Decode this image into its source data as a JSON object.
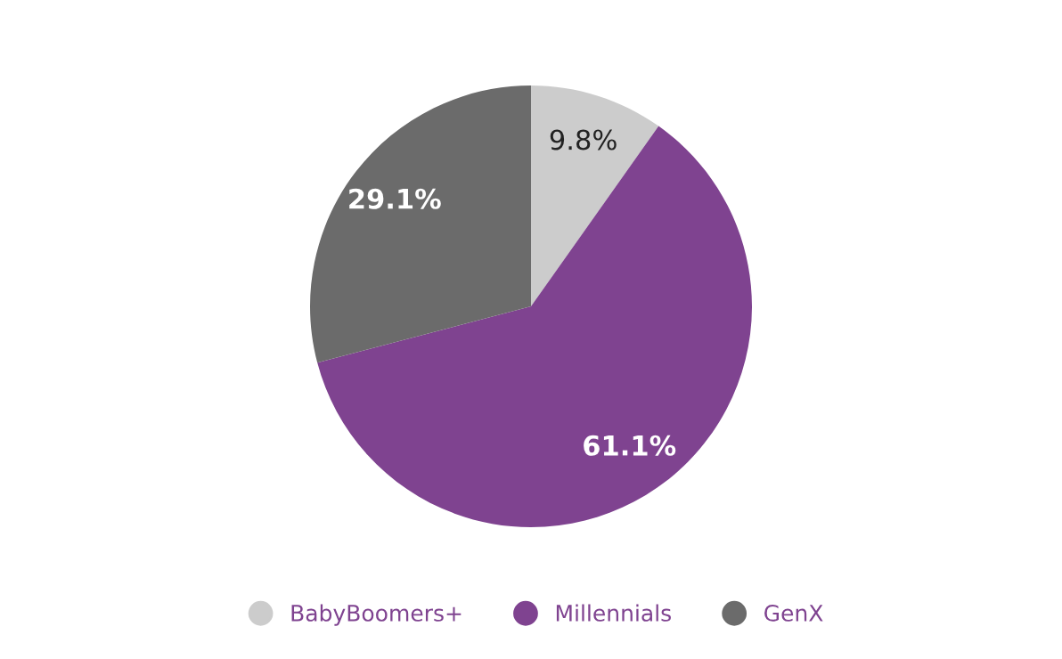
{
  "chart_data": {
    "type": "pie",
    "categories": [
      "BabyBoomers+",
      "Millennials",
      "GenX"
    ],
    "values": [
      9.8,
      61.1,
      29.1
    ],
    "colors": [
      "#cccccc",
      "#7f4390",
      "#6b6b6b"
    ],
    "value_labels": [
      "9.8%",
      "61.1%",
      "29.1%"
    ],
    "legend": "bottom"
  }
}
